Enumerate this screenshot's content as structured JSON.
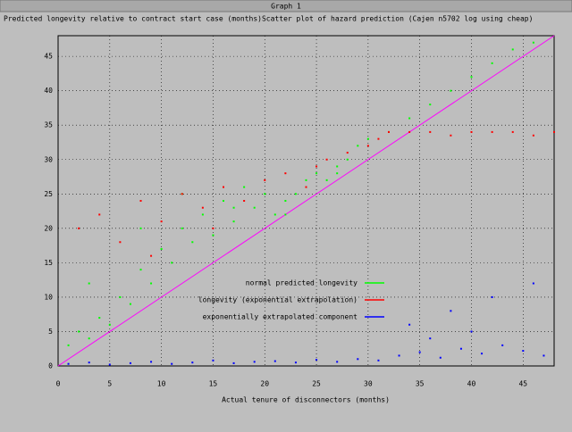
{
  "window": {
    "title": "Graph 1"
  },
  "chart_data": {
    "type": "scatter",
    "title": "Predicted longevity relative to contract start case (months)Scatter plot of hazard prediction (Cajen n5702 log using cheap)",
    "xlabel": "Actual tenure of disconnectors (months)",
    "xlim": [
      0,
      48
    ],
    "xticks": [
      0,
      5,
      10,
      15,
      20,
      25,
      30,
      35,
      40,
      45
    ],
    "ylim": [
      0,
      48
    ],
    "yticks": [
      0,
      5,
      10,
      15,
      20,
      25,
      30,
      35,
      40,
      45
    ],
    "grid": true,
    "reference_line": {
      "x": [
        0,
        48
      ],
      "y": [
        0,
        48
      ],
      "color": "#ff00ff"
    },
    "series": [
      {
        "name": "normal predicted longevity",
        "color": "#00ff00",
        "x": [
          1,
          2,
          3,
          4,
          5,
          6,
          7,
          8,
          9,
          10,
          11,
          12,
          13,
          14,
          15,
          16,
          17,
          18,
          19,
          20,
          21,
          22,
          23,
          24,
          25,
          26,
          27,
          28,
          29,
          30,
          32,
          34,
          36,
          38,
          40,
          42,
          44,
          46,
          3,
          8,
          12,
          17,
          22,
          27
        ],
        "y": [
          3,
          5,
          4,
          7,
          6,
          10,
          9,
          14,
          12,
          17,
          15,
          20,
          18,
          22,
          19,
          24,
          21,
          26,
          23,
          25,
          22,
          24,
          25,
          27,
          28,
          27,
          29,
          30,
          32,
          33,
          34,
          36,
          38,
          40,
          42,
          44,
          46,
          47,
          12,
          20,
          25,
          23,
          22,
          28
        ]
      },
      {
        "name": "longevity (exponential extrapolation)",
        "color": "#ff0000",
        "x": [
          2,
          4,
          6,
          8,
          10,
          12,
          14,
          16,
          18,
          20,
          22,
          24,
          26,
          28,
          30,
          31,
          32,
          34,
          36,
          38,
          40,
          42,
          44,
          46,
          48,
          15,
          25,
          9
        ],
        "y": [
          20,
          22,
          18,
          24,
          21,
          25,
          23,
          26,
          24,
          27,
          28,
          26,
          30,
          31,
          32,
          33,
          34,
          34,
          34,
          33.5,
          34,
          34,
          34,
          33.5,
          34,
          20,
          29,
          16
        ]
      },
      {
        "name": "exponentially extrapolated component",
        "color": "#0000ff",
        "x": [
          1,
          3,
          5,
          7,
          9,
          11,
          13,
          15,
          17,
          19,
          21,
          23,
          25,
          27,
          29,
          31,
          33,
          35,
          37,
          39,
          41,
          43,
          45,
          47,
          34,
          38,
          42,
          46,
          36,
          40
        ],
        "y": [
          0.3,
          0.5,
          0.2,
          0.4,
          0.6,
          0.3,
          0.5,
          0.8,
          0.4,
          0.6,
          0.7,
          0.5,
          0.9,
          0.6,
          1,
          0.8,
          1.5,
          2,
          1.2,
          2.5,
          1.8,
          3,
          2.2,
          1.5,
          6,
          8,
          10,
          12,
          4,
          5
        ]
      }
    ]
  }
}
